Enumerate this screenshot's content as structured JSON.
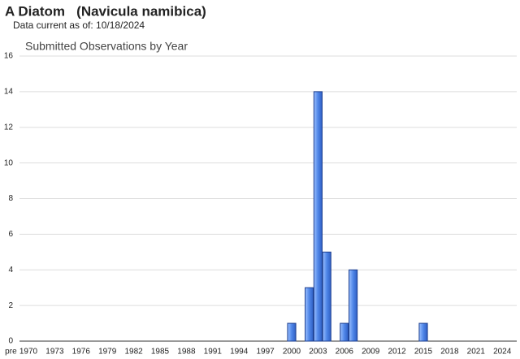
{
  "chart_data": {
    "type": "bar",
    "title": "A Diatom   (Navicula namibica)",
    "subtitle": "Data current as of: 10/18/2024",
    "chart_title": "Submitted Observations by Year",
    "categories": [
      "pre",
      null,
      "1970",
      null,
      null,
      "1973",
      null,
      null,
      "1976",
      null,
      null,
      "1979",
      null,
      null,
      "1982",
      null,
      null,
      "1985",
      null,
      null,
      "1988",
      null,
      null,
      "1991",
      null,
      null,
      "1994",
      null,
      null,
      "1997",
      null,
      null,
      "2000",
      null,
      null,
      "2003",
      null,
      null,
      "2006",
      null,
      null,
      "2009",
      null,
      null,
      "2012",
      null,
      null,
      "2015",
      null,
      null,
      "2018",
      null,
      null,
      "2021",
      null,
      null,
      "2024"
    ],
    "values": [
      0,
      0,
      0,
      0,
      0,
      0,
      0,
      0,
      0,
      0,
      0,
      0,
      0,
      0,
      0,
      0,
      0,
      0,
      0,
      0,
      0,
      0,
      0,
      0,
      0,
      0,
      0,
      0,
      0,
      0,
      0,
      0,
      1,
      0,
      3,
      14,
      5,
      0,
      1,
      4,
      0,
      0,
      0,
      0,
      0,
      0,
      0,
      1,
      0,
      0,
      0,
      0,
      0,
      0,
      0,
      0,
      0
    ],
    "color": "#4f86e8",
    "ylim": [
      0,
      16
    ],
    "yticks": [
      0,
      2,
      4,
      6,
      8,
      10,
      12,
      14,
      16
    ],
    "grid": true
  }
}
